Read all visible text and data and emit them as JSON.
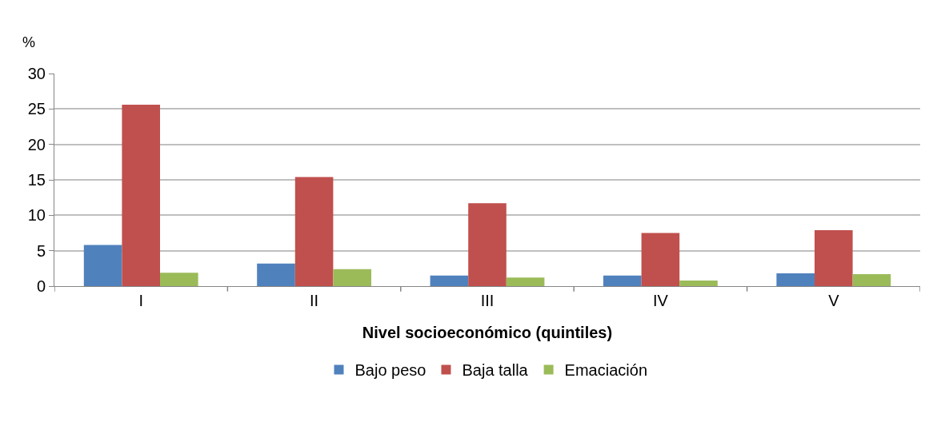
{
  "chart_data": {
    "type": "bar",
    "ylabel": "%",
    "xlabel": "Nivel socioeconómico (quintiles)",
    "categories": [
      "I",
      "II",
      "III",
      "IV",
      "V"
    ],
    "series": [
      {
        "name": "Bajo peso",
        "color": "#4f81bd",
        "values": [
          5.8,
          3.2,
          1.5,
          1.5,
          1.8
        ]
      },
      {
        "name": "Baja talla",
        "color": "#c0504d",
        "values": [
          25.6,
          15.4,
          11.7,
          7.5,
          7.9
        ]
      },
      {
        "name": "Emaciación",
        "color": "#9bbb59",
        "values": [
          1.9,
          2.4,
          1.2,
          0.8,
          1.7
        ]
      }
    ],
    "ylim": [
      0,
      30
    ],
    "yticks": [
      0,
      5,
      10,
      15,
      20,
      25,
      30
    ],
    "grid": "y",
    "legend": "bottom"
  }
}
